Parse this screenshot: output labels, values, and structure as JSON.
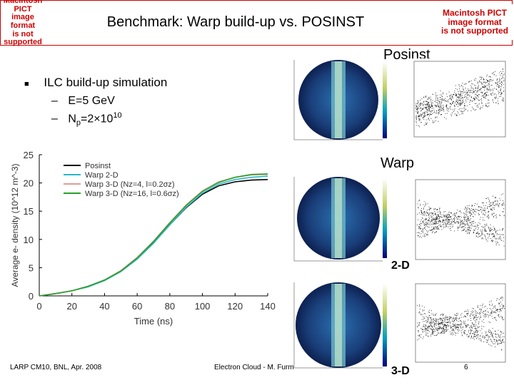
{
  "header": {
    "title": "Benchmark: Warp build-up vs. POSINST",
    "pict_left": [
      "Macintosh PICT",
      "image format",
      "is not supported"
    ],
    "pict_right": [
      "Macintosh PICT",
      "image format",
      "is not supported"
    ]
  },
  "labels": {
    "posinst": "Posinst",
    "warp": "Warp",
    "two_d": "2-D",
    "three_d": "3-D"
  },
  "bullets": {
    "main": "ILC build-up simulation",
    "energy": "E=5 GeV",
    "np_prefix": "N",
    "np_sub": "p",
    "np_value": "=2×10",
    "np_exp": "10"
  },
  "footer": {
    "left": "LARP CM10, BNL, Apr. 2008",
    "center": "Electron Cloud - M. Furm",
    "page": "6"
  },
  "chart_data": {
    "type": "line",
    "title": "",
    "xlabel": "Time (ns)",
    "ylabel": "Average e- density (10^12 m^-3)",
    "xlim": [
      0,
      140
    ],
    "ylim": [
      0,
      25
    ],
    "xticks": [
      0,
      20,
      40,
      60,
      80,
      100,
      120,
      140
    ],
    "yticks": [
      0,
      5,
      10,
      15,
      20,
      25
    ],
    "legend_position": "top-left",
    "legend": [
      "Posinst",
      "Warp 2-D",
      "Warp 3-D (Nz=4, l=0.2σz)",
      "Warp 3-D (Nz=16, l=0.6σz)"
    ],
    "x": [
      0,
      10,
      20,
      30,
      40,
      50,
      60,
      70,
      80,
      90,
      100,
      110,
      120,
      130,
      140
    ],
    "series": [
      {
        "name": "Posinst",
        "color": "#000000",
        "values": [
          0.0,
          0.4,
          0.9,
          1.7,
          2.8,
          4.4,
          6.6,
          9.4,
          12.6,
          15.6,
          18.0,
          19.5,
          20.2,
          20.5,
          20.6
        ]
      },
      {
        "name": "Warp 2-D",
        "color": "#2bb7c9",
        "values": [
          0.0,
          0.4,
          0.9,
          1.6,
          2.7,
          4.3,
          6.5,
          9.3,
          12.6,
          15.7,
          18.2,
          19.8,
          20.6,
          21.0,
          21.2
        ]
      },
      {
        "name": "Warp 3-D (Nz=4, l=0.2σz)",
        "color": "#e29a9a",
        "values": [
          0.0,
          0.4,
          0.9,
          1.7,
          2.8,
          4.5,
          6.8,
          9.7,
          13.0,
          16.1,
          18.6,
          20.2,
          21.0,
          21.4,
          21.5
        ]
      },
      {
        "name": "Warp 3-D (Nz=16, l=0.6σz)",
        "color": "#2aa02a",
        "values": [
          0.0,
          0.4,
          0.9,
          1.7,
          2.8,
          4.4,
          6.7,
          9.6,
          12.9,
          16.0,
          18.5,
          20.1,
          21.0,
          21.5,
          21.6
        ]
      }
    ]
  }
}
